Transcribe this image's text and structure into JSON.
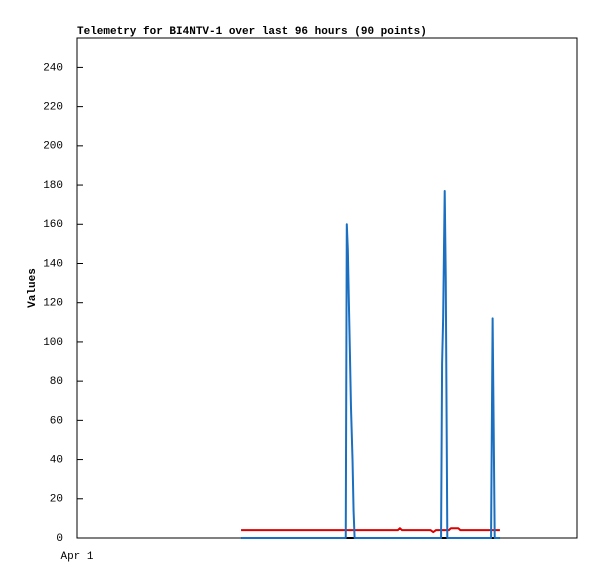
{
  "chart_data": {
    "type": "line",
    "title": "Telemetry for BI4NTV-1 over last 96 hours (90 points)",
    "y_label": "Values",
    "xlim": [
      0,
      96
    ],
    "xticks": [
      {
        "value": 0,
        "label": "Apr 1"
      }
    ],
    "ylim": [
      0,
      255
    ],
    "yticks": [
      0,
      20,
      40,
      60,
      80,
      100,
      120,
      140,
      160,
      180,
      200,
      220,
      240
    ],
    "series": [
      {
        "color": "#dd0000",
        "x": [
          31.5,
          61.6,
          62.0,
          62.4,
          67.9,
          68.4,
          68.9,
          71.4,
          71.8,
          73.2,
          73.6,
          81.2
        ],
        "values": [
          4,
          4,
          5,
          4,
          4,
          3,
          4,
          4,
          5,
          5,
          4,
          4
        ]
      },
      {
        "color": "#000000",
        "x": [
          31.5,
          81.2
        ],
        "values": [
          0,
          0
        ]
      },
      {
        "color": "#1a6fc0",
        "x": [
          31.5,
          51.6,
          51.7,
          51.8,
          52.0,
          52.2,
          52.4,
          52.6,
          52.9,
          53.1,
          53.3,
          69.9,
          70.1,
          70.3,
          70.6,
          70.8,
          71.0,
          71.1,
          79.5,
          79.8,
          80.0,
          80.2,
          81.2
        ],
        "values": [
          0,
          0,
          80,
          160,
          147,
          120,
          94,
          67,
          40,
          14,
          0,
          0,
          89,
          112,
          177,
          133,
          45,
          0,
          0,
          112,
          56,
          0,
          0
        ]
      }
    ]
  }
}
